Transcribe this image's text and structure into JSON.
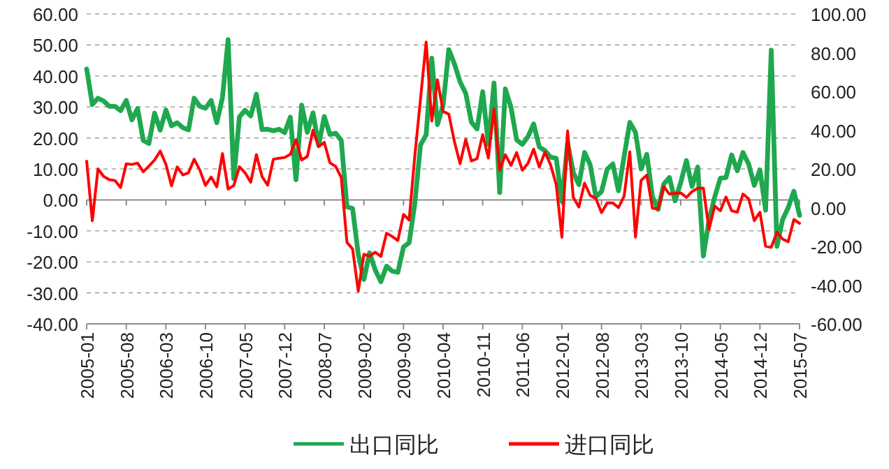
{
  "chart_data": {
    "type": "line",
    "x": [
      "2005-01",
      "2005-02",
      "2005-03",
      "2005-04",
      "2005-05",
      "2005-06",
      "2005-07",
      "2005-08",
      "2005-09",
      "2005-10",
      "2005-11",
      "2005-12",
      "2006-01",
      "2006-02",
      "2006-03",
      "2006-04",
      "2006-05",
      "2006-06",
      "2006-07",
      "2006-08",
      "2006-09",
      "2006-10",
      "2006-11",
      "2006-12",
      "2007-01",
      "2007-02",
      "2007-03",
      "2007-04",
      "2007-05",
      "2007-06",
      "2007-07",
      "2007-08",
      "2007-09",
      "2007-10",
      "2007-11",
      "2007-12",
      "2008-01",
      "2008-02",
      "2008-03",
      "2008-04",
      "2008-05",
      "2008-06",
      "2008-07",
      "2008-08",
      "2008-09",
      "2008-10",
      "2008-11",
      "2008-12",
      "2009-01",
      "2009-02",
      "2009-03",
      "2009-04",
      "2009-05",
      "2009-06",
      "2009-07",
      "2009-08",
      "2009-09",
      "2009-10",
      "2009-11",
      "2009-12",
      "2010-01",
      "2010-02",
      "2010-03",
      "2010-04",
      "2010-05",
      "2010-06",
      "2010-07",
      "2010-08",
      "2010-09",
      "2010-10",
      "2010-11",
      "2010-12",
      "2011-01",
      "2011-02",
      "2011-03",
      "2011-04",
      "2011-05",
      "2011-06",
      "2011-07",
      "2011-08",
      "2011-09",
      "2011-10",
      "2011-11",
      "2011-12",
      "2012-01",
      "2012-02",
      "2012-03",
      "2012-04",
      "2012-05",
      "2012-06",
      "2012-07",
      "2012-08",
      "2012-09",
      "2012-10",
      "2012-11",
      "2012-12",
      "2013-01",
      "2013-02",
      "2013-03",
      "2013-04",
      "2013-05",
      "2013-06",
      "2013-07",
      "2013-08",
      "2013-09",
      "2013-10",
      "2013-11",
      "2013-12",
      "2014-01",
      "2014-02",
      "2014-03",
      "2014-04",
      "2014-05",
      "2014-06",
      "2014-07",
      "2014-08",
      "2014-09",
      "2014-10",
      "2014-11",
      "2014-12",
      "2015-01",
      "2015-02",
      "2015-03",
      "2015-04",
      "2015-05",
      "2015-06",
      "2015-07"
    ],
    "series": [
      {
        "name": "出口同比",
        "color": "#1fa84f",
        "values": [
          42.2,
          30.8,
          32.8,
          31.9,
          30.2,
          30.2,
          28.8,
          32.1,
          25.8,
          29.5,
          19.2,
          18.2,
          28.0,
          22.5,
          29.0,
          23.9,
          24.9,
          23.3,
          22.6,
          32.8,
          30.2,
          29.6,
          32.1,
          24.9,
          33.0,
          51.7,
          6.9,
          26.8,
          28.9,
          27.1,
          34.1,
          22.7,
          22.8,
          22.3,
          22.8,
          21.7,
          26.7,
          6.5,
          30.6,
          21.8,
          28.1,
          17.6,
          26.9,
          21.1,
          21.5,
          19.2,
          -2.2,
          -2.8,
          -17.5,
          -25.7,
          -17.1,
          -22.6,
          -26.4,
          -21.4,
          -23.0,
          -23.4,
          -15.2,
          -13.8,
          -1.2,
          17.7,
          21.0,
          45.7,
          24.3,
          30.5,
          48.5,
          43.9,
          38.1,
          34.4,
          25.1,
          22.9,
          34.9,
          17.9,
          37.7,
          2.4,
          35.8,
          29.9,
          19.4,
          17.9,
          20.4,
          24.5,
          17.1,
          15.9,
          13.8,
          13.4,
          -0.5,
          18.4,
          8.9,
          4.9,
          15.3,
          11.3,
          1.0,
          2.7,
          9.9,
          11.6,
          2.9,
          14.1,
          25.0,
          21.8,
          10.0,
          14.7,
          1.0,
          -3.1,
          5.1,
          7.2,
          -0.3,
          5.6,
          12.7,
          4.3,
          10.6,
          -18.1,
          -6.6,
          0.9,
          7.0,
          7.2,
          14.5,
          9.4,
          15.3,
          11.6,
          4.7,
          9.7,
          -3.3,
          48.3,
          -15.0,
          -6.4,
          -2.5,
          2.8,
          -5.0
        ]
      },
      {
        "name": "进口同比",
        "color": "#ff0000",
        "axis": "y2",
        "values": [
          24.0,
          -6.8,
          20.0,
          16.1,
          14.4,
          14.0,
          10.4,
          22.6,
          22.3,
          23.0,
          18.5,
          21.4,
          24.6,
          29.2,
          22.4,
          11.3,
          21.0,
          16.9,
          18.0,
          25.0,
          19.4,
          11.5,
          15.8,
          10.7,
          27.9,
          9.6,
          11.4,
          21.1,
          18.0,
          13.1,
          27.4,
          16.0,
          11.6,
          25.0,
          25.5,
          25.9,
          27.6,
          35.0,
          24.6,
          26.4,
          40.0,
          31.5,
          33.7,
          23.1,
          21.3,
          15.6,
          -17.9,
          -21.3,
          -43.1,
          -24.1,
          -25.1,
          -23.0,
          -25.2,
          -13.2,
          -14.9,
          -17.0,
          -3.5,
          -6.4,
          26.7,
          55.9,
          85.5,
          44.7,
          66.0,
          49.7,
          48.3,
          34.1,
          22.7,
          35.2,
          24.1,
          25.3,
          37.7,
          25.6,
          51.0,
          19.4,
          27.3,
          21.8,
          28.4,
          19.3,
          22.9,
          30.2,
          20.9,
          28.7,
          22.1,
          11.8,
          -15.3,
          39.6,
          5.3,
          0.3,
          12.7,
          6.3,
          4.7,
          -2.6,
          2.4,
          2.4,
          0.0,
          6.0,
          28.8,
          -15.2,
          14.1,
          16.8,
          -0.3,
          -0.7,
          10.9,
          7.0,
          7.4,
          7.6,
          5.3,
          8.3,
          10.0,
          10.1,
          -11.3,
          0.8,
          -1.6,
          5.5,
          -1.6,
          -2.4,
          7.0,
          4.6,
          -6.7,
          -2.4,
          -19.9,
          -20.5,
          -12.7,
          -16.2,
          -17.6,
          -6.1,
          -8.1
        ]
      }
    ],
    "xlim": [
      "2005-01",
      "2015-07"
    ],
    "xticks": [
      "2005-01",
      "2005-08",
      "2006-03",
      "2006-10",
      "2007-05",
      "2007-12",
      "2008-07",
      "2009-02",
      "2009-09",
      "2010-04",
      "2010-11",
      "2011-06",
      "2012-01",
      "2012-08",
      "2013-03",
      "2013-10",
      "2014-05",
      "2014-12",
      "2015-07"
    ],
    "ylim": [
      -40,
      60
    ],
    "yticks": [
      {
        "value": -40,
        "label": "-40.00"
      },
      {
        "value": -30,
        "label": "-30.00"
      },
      {
        "value": -20,
        "label": "-20.00"
      },
      {
        "value": -10,
        "label": "-10.00"
      },
      {
        "value": 0,
        "label": "0.00"
      },
      {
        "value": 10,
        "label": "10.00"
      },
      {
        "value": 20,
        "label": "20.00"
      },
      {
        "value": 30,
        "label": "30.00"
      },
      {
        "value": 40,
        "label": "40.00"
      },
      {
        "value": 50,
        "label": "50.00"
      },
      {
        "value": 60,
        "label": "60.00"
      }
    ],
    "y2lim": [
      -60,
      100
    ],
    "y2ticks": [
      {
        "value": -60,
        "label": "-60.00"
      },
      {
        "value": -40,
        "label": "-40.00"
      },
      {
        "value": -20,
        "label": "-20.00"
      },
      {
        "value": 0,
        "label": "0.00"
      },
      {
        "value": 20,
        "label": "20.00"
      },
      {
        "value": 40,
        "label": "40.00"
      },
      {
        "value": 60,
        "label": "60.00"
      },
      {
        "value": 80,
        "label": "80.00"
      },
      {
        "value": 100,
        "label": "100.00"
      }
    ],
    "grid": "y",
    "legend": "bottom",
    "marker": "none",
    "line_style": "solid"
  }
}
